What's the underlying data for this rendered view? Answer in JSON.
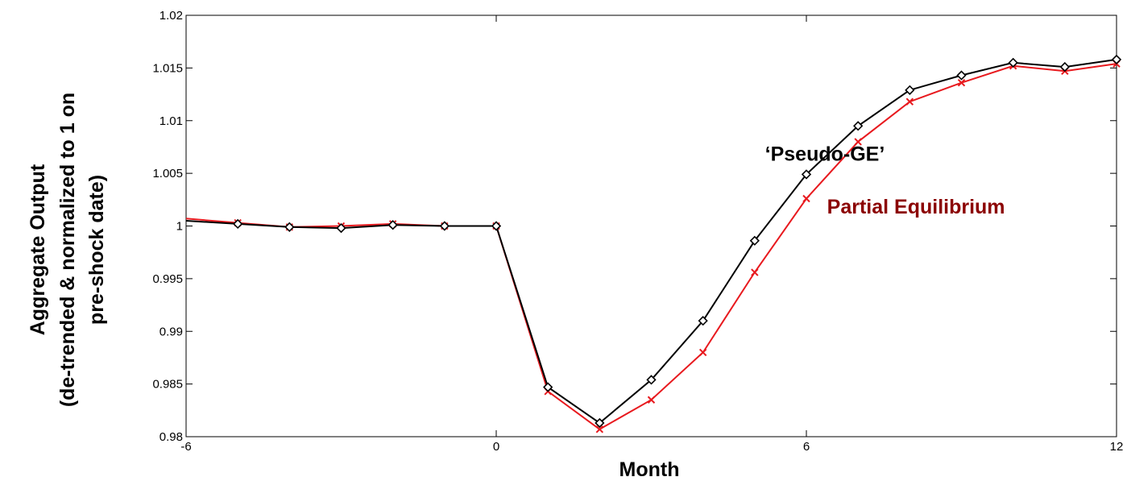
{
  "chart_data": {
    "type": "line",
    "xlabel": "Month",
    "ylabel_lines": [
      "Aggregate Output",
      "(de-trended & normalized to 1 on",
      "pre-shock date)"
    ],
    "xlim": [
      -6,
      12
    ],
    "ylim": [
      0.98,
      1.02
    ],
    "x_ticks": [
      -6,
      0,
      6,
      12
    ],
    "y_ticks": [
      0.98,
      0.985,
      0.99,
      0.995,
      1,
      1.005,
      1.01,
      1.015,
      1.02
    ],
    "y_tick_labels": [
      "0.98",
      "0.985",
      "0.99",
      "0.995",
      "1",
      "1.005",
      "1.01",
      "1.015",
      "1.02"
    ],
    "grid": false,
    "series": [
      {
        "name": "Partial Equilibrium",
        "color": "#e8191e",
        "marker": "x",
        "x": [
          -6,
          -5,
          -4,
          -3,
          -2,
          -1,
          0,
          1,
          2,
          3,
          4,
          5,
          6,
          7,
          8,
          9,
          10,
          11,
          12
        ],
        "values": [
          1.0007,
          1.0003,
          0.9999,
          1.0,
          1.0002,
          1.0,
          1.0,
          0.9843,
          0.9807,
          0.9835,
          0.988,
          0.9956,
          1.0026,
          1.008,
          1.0118,
          1.0136,
          1.0152,
          1.0147,
          1.0154
        ]
      },
      {
        "name": "‘Pseudo-GE’",
        "color": "#000000",
        "marker": "diamond",
        "x": [
          -6,
          -5,
          -4,
          -3,
          -2,
          -1,
          0,
          1,
          2,
          3,
          4,
          5,
          6,
          7,
          8,
          9,
          10,
          11,
          12
        ],
        "values": [
          1.0005,
          1.0002,
          0.9999,
          0.9998,
          1.0001,
          1.0,
          1.0,
          0.9847,
          0.9813,
          0.9854,
          0.991,
          0.9986,
          1.0049,
          1.0095,
          1.0129,
          1.0143,
          1.0155,
          1.0151,
          1.0158
        ]
      }
    ],
    "annotations": [
      {
        "text": "‘Pseudo-GE’",
        "color": "#000000",
        "x": 5.2,
        "y": 1.0062
      },
      {
        "text": "Partial Equilibrium",
        "color": "#8b0000",
        "x": 6.4,
        "y": 1.0012
      }
    ]
  }
}
